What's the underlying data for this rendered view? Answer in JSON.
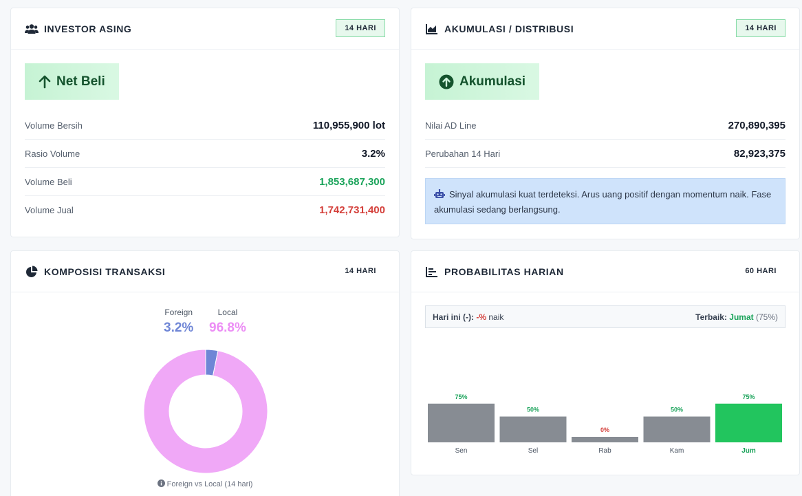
{
  "investor": {
    "title": "INVESTOR ASING",
    "badge": "14 HARI",
    "signal": "Net Beli",
    "rows": [
      {
        "label": "Volume Bersih",
        "value": "110,955,900 lot"
      },
      {
        "label": "Rasio Volume",
        "value": "3.2%"
      },
      {
        "label": "Volume Beli",
        "value": "1,853,687,300"
      },
      {
        "label": "Volume Jual",
        "value": "1,742,731,400"
      }
    ]
  },
  "akumulasi": {
    "title": "AKUMULASI / DISTRIBUSI",
    "badge": "14 HARI",
    "signal": "Akumulasi",
    "rows": [
      {
        "label": "Nilai AD Line",
        "value": "270,890,395"
      },
      {
        "label": "Perubahan 14 Hari",
        "value": "82,923,375"
      }
    ],
    "info": "Sinyal akumulasi kuat terdeteksi. Arus uang positif dengan momentum naik. Fase akumulasi sedang berlangsung."
  },
  "komposisi": {
    "title": "KOMPOSISI TRANSAKSI",
    "badge": "14 HARI",
    "foreign_label": "Foreign",
    "foreign_pct": "3.2%",
    "local_label": "Local",
    "local_pct": "96.8%",
    "caption": "Foreign vs Local (14 hari)",
    "colors": {
      "foreign": "#6f86d6",
      "local": "#f0a8f7"
    }
  },
  "probabilitas": {
    "title": "PROBABILITAS HARIAN",
    "badge": "60 HARI",
    "today_label": "Hari ini (-):",
    "today_value": "-%",
    "today_suffix": "naik",
    "best_label": "Terbaik:",
    "best_day": "Jumat",
    "best_pct": "(75%)"
  },
  "chart_data": {
    "type": "bar",
    "categories": [
      "Sen",
      "Sel",
      "Rab",
      "Kam",
      "Jum"
    ],
    "values": [
      75,
      50,
      0,
      50,
      75
    ],
    "value_labels": [
      "75%",
      "50%",
      "0%",
      "50%",
      "75%"
    ],
    "highlight": "Jum",
    "colors": {
      "default": "#878c93",
      "highlight": "#22c55e"
    }
  }
}
